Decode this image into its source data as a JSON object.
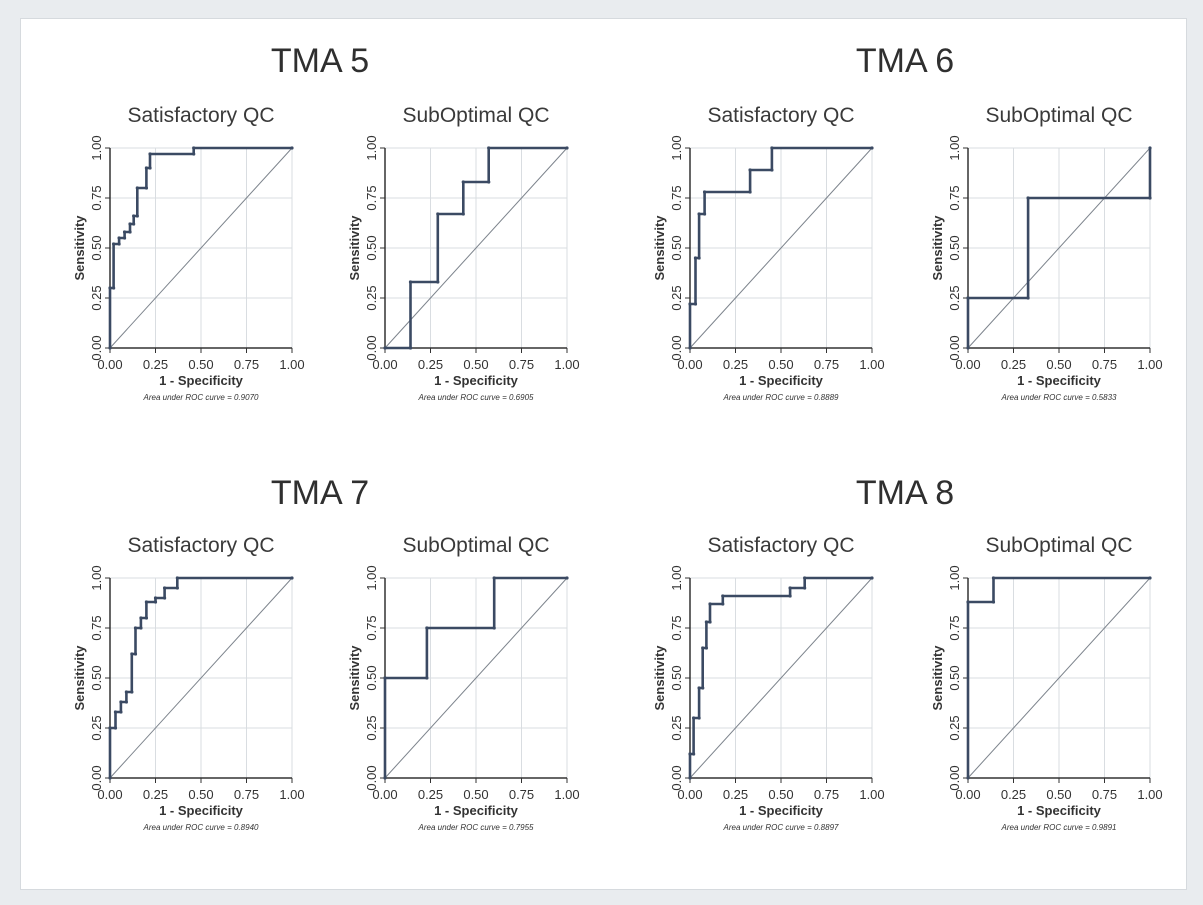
{
  "group_titles": [
    "TMA 5",
    "TMA 6",
    "TMA 7",
    "TMA 8"
  ],
  "colors": {
    "curve": "#3b4a63",
    "diagonal": "#7c838c",
    "grid": "#d9dde1",
    "frame": "#333333"
  },
  "chart_data": [
    {
      "type": "line",
      "group": "TMA 5",
      "title": "Satisfactory QC",
      "xlabel": "1 - Specificity",
      "ylabel": "Sensitivity",
      "xlim": [
        0,
        1
      ],
      "ylim": [
        0,
        1
      ],
      "xticks": [
        "0.00",
        "0.25",
        "0.50",
        "0.75",
        "1.00"
      ],
      "yticks": [
        "0.00",
        "0.25",
        "0.50",
        "0.75",
        "1.00"
      ],
      "auc_label": "Area under ROC curve = 0.9070",
      "points": [
        [
          0,
          0
        ],
        [
          0,
          0.3
        ],
        [
          0.02,
          0.3
        ],
        [
          0.02,
          0.52
        ],
        [
          0.05,
          0.52
        ],
        [
          0.05,
          0.55
        ],
        [
          0.08,
          0.55
        ],
        [
          0.08,
          0.58
        ],
        [
          0.11,
          0.58
        ],
        [
          0.11,
          0.62
        ],
        [
          0.13,
          0.62
        ],
        [
          0.13,
          0.66
        ],
        [
          0.15,
          0.66
        ],
        [
          0.15,
          0.8
        ],
        [
          0.2,
          0.8
        ],
        [
          0.2,
          0.9
        ],
        [
          0.22,
          0.9
        ],
        [
          0.22,
          0.97
        ],
        [
          0.46,
          0.97
        ],
        [
          0.46,
          1
        ],
        [
          1,
          1
        ]
      ]
    },
    {
      "type": "line",
      "group": "TMA 5",
      "title": "SubOptimal QC",
      "xlabel": "1 - Specificity",
      "ylabel": "Sensitivity",
      "xlim": [
        0,
        1
      ],
      "ylim": [
        0,
        1
      ],
      "xticks": [
        "0.00",
        "0.25",
        "0.50",
        "0.75",
        "1.00"
      ],
      "yticks": [
        "0.00",
        "0.25",
        "0.50",
        "0.75",
        "1.00"
      ],
      "auc_label": "Area under ROC curve = 0.6905",
      "points": [
        [
          0,
          0
        ],
        [
          0.14,
          0
        ],
        [
          0.14,
          0.33
        ],
        [
          0.29,
          0.33
        ],
        [
          0.29,
          0.67
        ],
        [
          0.43,
          0.67
        ],
        [
          0.43,
          0.83
        ],
        [
          0.57,
          0.83
        ],
        [
          0.57,
          1
        ],
        [
          1,
          1
        ]
      ]
    },
    {
      "type": "line",
      "group": "TMA 6",
      "title": "Satisfactory QC",
      "xlabel": "1 - Specificity",
      "ylabel": "Sensitivity",
      "xlim": [
        0,
        1
      ],
      "ylim": [
        0,
        1
      ],
      "xticks": [
        "0.00",
        "0.25",
        "0.50",
        "0.75",
        "1.00"
      ],
      "yticks": [
        "0.00",
        "0.25",
        "0.50",
        "0.75",
        "1.00"
      ],
      "auc_label": "Area under ROC curve = 0.8889",
      "points": [
        [
          0,
          0
        ],
        [
          0,
          0.22
        ],
        [
          0.03,
          0.22
        ],
        [
          0.03,
          0.45
        ],
        [
          0.05,
          0.45
        ],
        [
          0.05,
          0.67
        ],
        [
          0.08,
          0.67
        ],
        [
          0.08,
          0.78
        ],
        [
          0.33,
          0.78
        ],
        [
          0.33,
          0.89
        ],
        [
          0.45,
          0.89
        ],
        [
          0.45,
          1
        ],
        [
          1,
          1
        ]
      ]
    },
    {
      "type": "line",
      "group": "TMA 6",
      "title": "SubOptimal QC",
      "xlabel": "1 - Specificity",
      "ylabel": "Sensitivity",
      "xlim": [
        0,
        1
      ],
      "ylim": [
        0,
        1
      ],
      "xticks": [
        "0.00",
        "0.25",
        "0.50",
        "0.75",
        "1.00"
      ],
      "yticks": [
        "0.00",
        "0.25",
        "0.50",
        "0.75",
        "1.00"
      ],
      "auc_label": "Area under ROC curve = 0.5833",
      "points": [
        [
          0,
          0
        ],
        [
          0,
          0.25
        ],
        [
          0.33,
          0.25
        ],
        [
          0.33,
          0.75
        ],
        [
          1,
          0.75
        ],
        [
          1,
          1
        ]
      ]
    },
    {
      "type": "line",
      "group": "TMA 7",
      "title": "Satisfactory QC",
      "xlabel": "1 - Specificity",
      "ylabel": "Sensitivity",
      "xlim": [
        0,
        1
      ],
      "ylim": [
        0,
        1
      ],
      "xticks": [
        "0.00",
        "0.25",
        "0.50",
        "0.75",
        "1.00"
      ],
      "yticks": [
        "0.00",
        "0.25",
        "0.50",
        "0.75",
        "1.00"
      ],
      "auc_label": "Area under ROC curve = 0.8940",
      "points": [
        [
          0,
          0
        ],
        [
          0,
          0.25
        ],
        [
          0.03,
          0.25
        ],
        [
          0.03,
          0.33
        ],
        [
          0.06,
          0.33
        ],
        [
          0.06,
          0.38
        ],
        [
          0.09,
          0.38
        ],
        [
          0.09,
          0.43
        ],
        [
          0.12,
          0.43
        ],
        [
          0.12,
          0.62
        ],
        [
          0.14,
          0.62
        ],
        [
          0.14,
          0.75
        ],
        [
          0.17,
          0.75
        ],
        [
          0.17,
          0.8
        ],
        [
          0.2,
          0.8
        ],
        [
          0.2,
          0.88
        ],
        [
          0.25,
          0.88
        ],
        [
          0.25,
          0.9
        ],
        [
          0.3,
          0.9
        ],
        [
          0.3,
          0.95
        ],
        [
          0.37,
          0.95
        ],
        [
          0.37,
          1
        ],
        [
          1,
          1
        ]
      ]
    },
    {
      "type": "line",
      "group": "TMA 7",
      "title": "SubOptimal QC",
      "xlabel": "1 - Specificity",
      "ylabel": "Sensitivity",
      "xlim": [
        0,
        1
      ],
      "ylim": [
        0,
        1
      ],
      "xticks": [
        "0.00",
        "0.25",
        "0.50",
        "0.75",
        "1.00"
      ],
      "yticks": [
        "0.00",
        "0.25",
        "0.50",
        "0.75",
        "1.00"
      ],
      "auc_label": "Area under ROC curve = 0.7955",
      "points": [
        [
          0,
          0
        ],
        [
          0,
          0.5
        ],
        [
          0.23,
          0.5
        ],
        [
          0.23,
          0.75
        ],
        [
          0.6,
          0.75
        ],
        [
          0.6,
          1
        ],
        [
          1,
          1
        ]
      ]
    },
    {
      "type": "line",
      "group": "TMA 8",
      "title": "Satisfactory QC",
      "xlabel": "1 - Specificity",
      "ylabel": "Sensitivity",
      "xlim": [
        0,
        1
      ],
      "ylim": [
        0,
        1
      ],
      "xticks": [
        "0.00",
        "0.25",
        "0.50",
        "0.75",
        "1.00"
      ],
      "yticks": [
        "0.00",
        "0.25",
        "0.50",
        "0.75",
        "1.00"
      ],
      "auc_label": "Area under ROC curve = 0.8897",
      "points": [
        [
          0,
          0
        ],
        [
          0,
          0.12
        ],
        [
          0.02,
          0.12
        ],
        [
          0.02,
          0.3
        ],
        [
          0.05,
          0.3
        ],
        [
          0.05,
          0.45
        ],
        [
          0.07,
          0.45
        ],
        [
          0.07,
          0.65
        ],
        [
          0.09,
          0.65
        ],
        [
          0.09,
          0.78
        ],
        [
          0.11,
          0.78
        ],
        [
          0.11,
          0.87
        ],
        [
          0.18,
          0.87
        ],
        [
          0.18,
          0.91
        ],
        [
          0.55,
          0.91
        ],
        [
          0.55,
          0.95
        ],
        [
          0.63,
          0.95
        ],
        [
          0.63,
          1
        ],
        [
          1,
          1
        ]
      ]
    },
    {
      "type": "line",
      "group": "TMA 8",
      "title": "SubOptimal QC",
      "xlabel": "1 - Specificity",
      "ylabel": "Sensitivity",
      "xlim": [
        0,
        1
      ],
      "ylim": [
        0,
        1
      ],
      "xticks": [
        "0.00",
        "0.25",
        "0.50",
        "0.75",
        "1.00"
      ],
      "yticks": [
        "0.00",
        "0.25",
        "0.50",
        "0.75",
        "1.00"
      ],
      "auc_label": "Area under ROC curve = 0.9891",
      "points": [
        [
          0,
          0
        ],
        [
          0,
          0.88
        ],
        [
          0.14,
          0.88
        ],
        [
          0.14,
          1
        ],
        [
          1,
          1
        ]
      ]
    }
  ]
}
